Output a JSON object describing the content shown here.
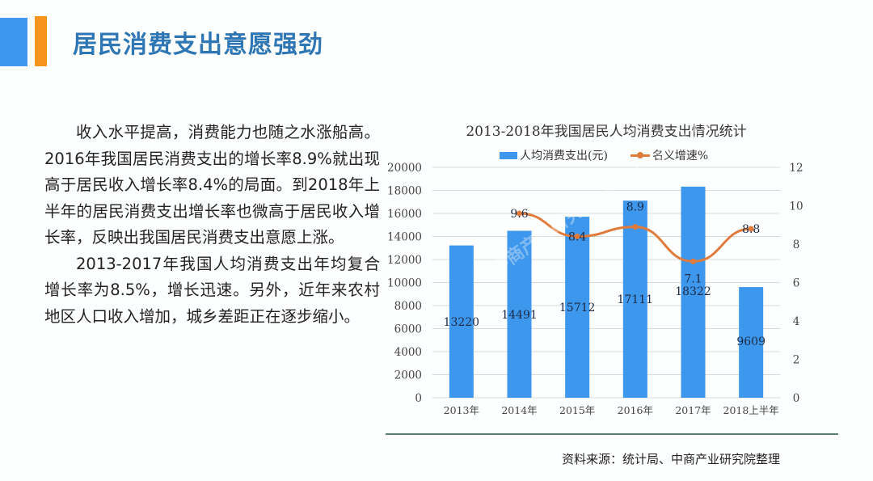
{
  "header": {
    "title": "居民消费支出意愿强劲",
    "accent_colors": {
      "blue": "#3d97ec",
      "orange": "#f7941d"
    }
  },
  "body": {
    "paragraphs": [
      "收入水平提高，消费能力也随之水涨船高。2016年我国居民消费支出的增长率8.9%就出现高于居民收入增长率8.4%的局面。到2018年上半年的居民消费支出增长率也微高于居民收入增长率，反映出我国居民消费支出意愿上涨。",
      "2013-2017年我国人均消费支出年均复合增长率为8.5%，增长迅速。另外，近年来农村地区人口收入增加，城乡差距正在逐步缩小。"
    ]
  },
  "chart_data": {
    "type": "bar",
    "title": "2013-2018年我国居民人均消费支出情况统计",
    "categories": [
      "2013年",
      "2014年",
      "2015年",
      "2016年",
      "2017年",
      "2018上半年"
    ],
    "series": [
      {
        "name": "人均消费支出(元)",
        "type": "bar",
        "axis": "left",
        "color": "#3d97ec",
        "values": [
          13220,
          14491,
          15712,
          17111,
          18322,
          9609
        ],
        "labels": [
          "13220",
          "14491",
          "15712",
          "17111",
          "18322",
          "9609"
        ]
      },
      {
        "name": "名义增速%",
        "type": "line",
        "axis": "right",
        "color": "#e07b3c",
        "values": [
          null,
          9.6,
          8.4,
          8.9,
          7.1,
          8.8
        ],
        "labels": [
          "",
          "9.6",
          "8.4",
          "8.9",
          "7.1",
          "8.8"
        ]
      }
    ],
    "left_axis": {
      "ylim": [
        0,
        20000
      ],
      "ticks": [
        "20000",
        "18000",
        "16000",
        "14000",
        "12000",
        "10000",
        "8000",
        "6000",
        "4000",
        "2000",
        "0"
      ]
    },
    "right_axis": {
      "ylim": [
        0,
        12
      ],
      "ticks": [
        "12",
        "10",
        "8",
        "6",
        "4",
        "2",
        "0"
      ]
    },
    "legend": {
      "position": "top",
      "entries": [
        "人均消费支出(元)",
        "名义增速%"
      ]
    },
    "grid": true,
    "xlabel": "",
    "ylabel": ""
  },
  "footer": {
    "source": "资料来源：统计局、中商产业研究院整理"
  },
  "watermark": "中商产业研究院 www.askci.com/reports"
}
